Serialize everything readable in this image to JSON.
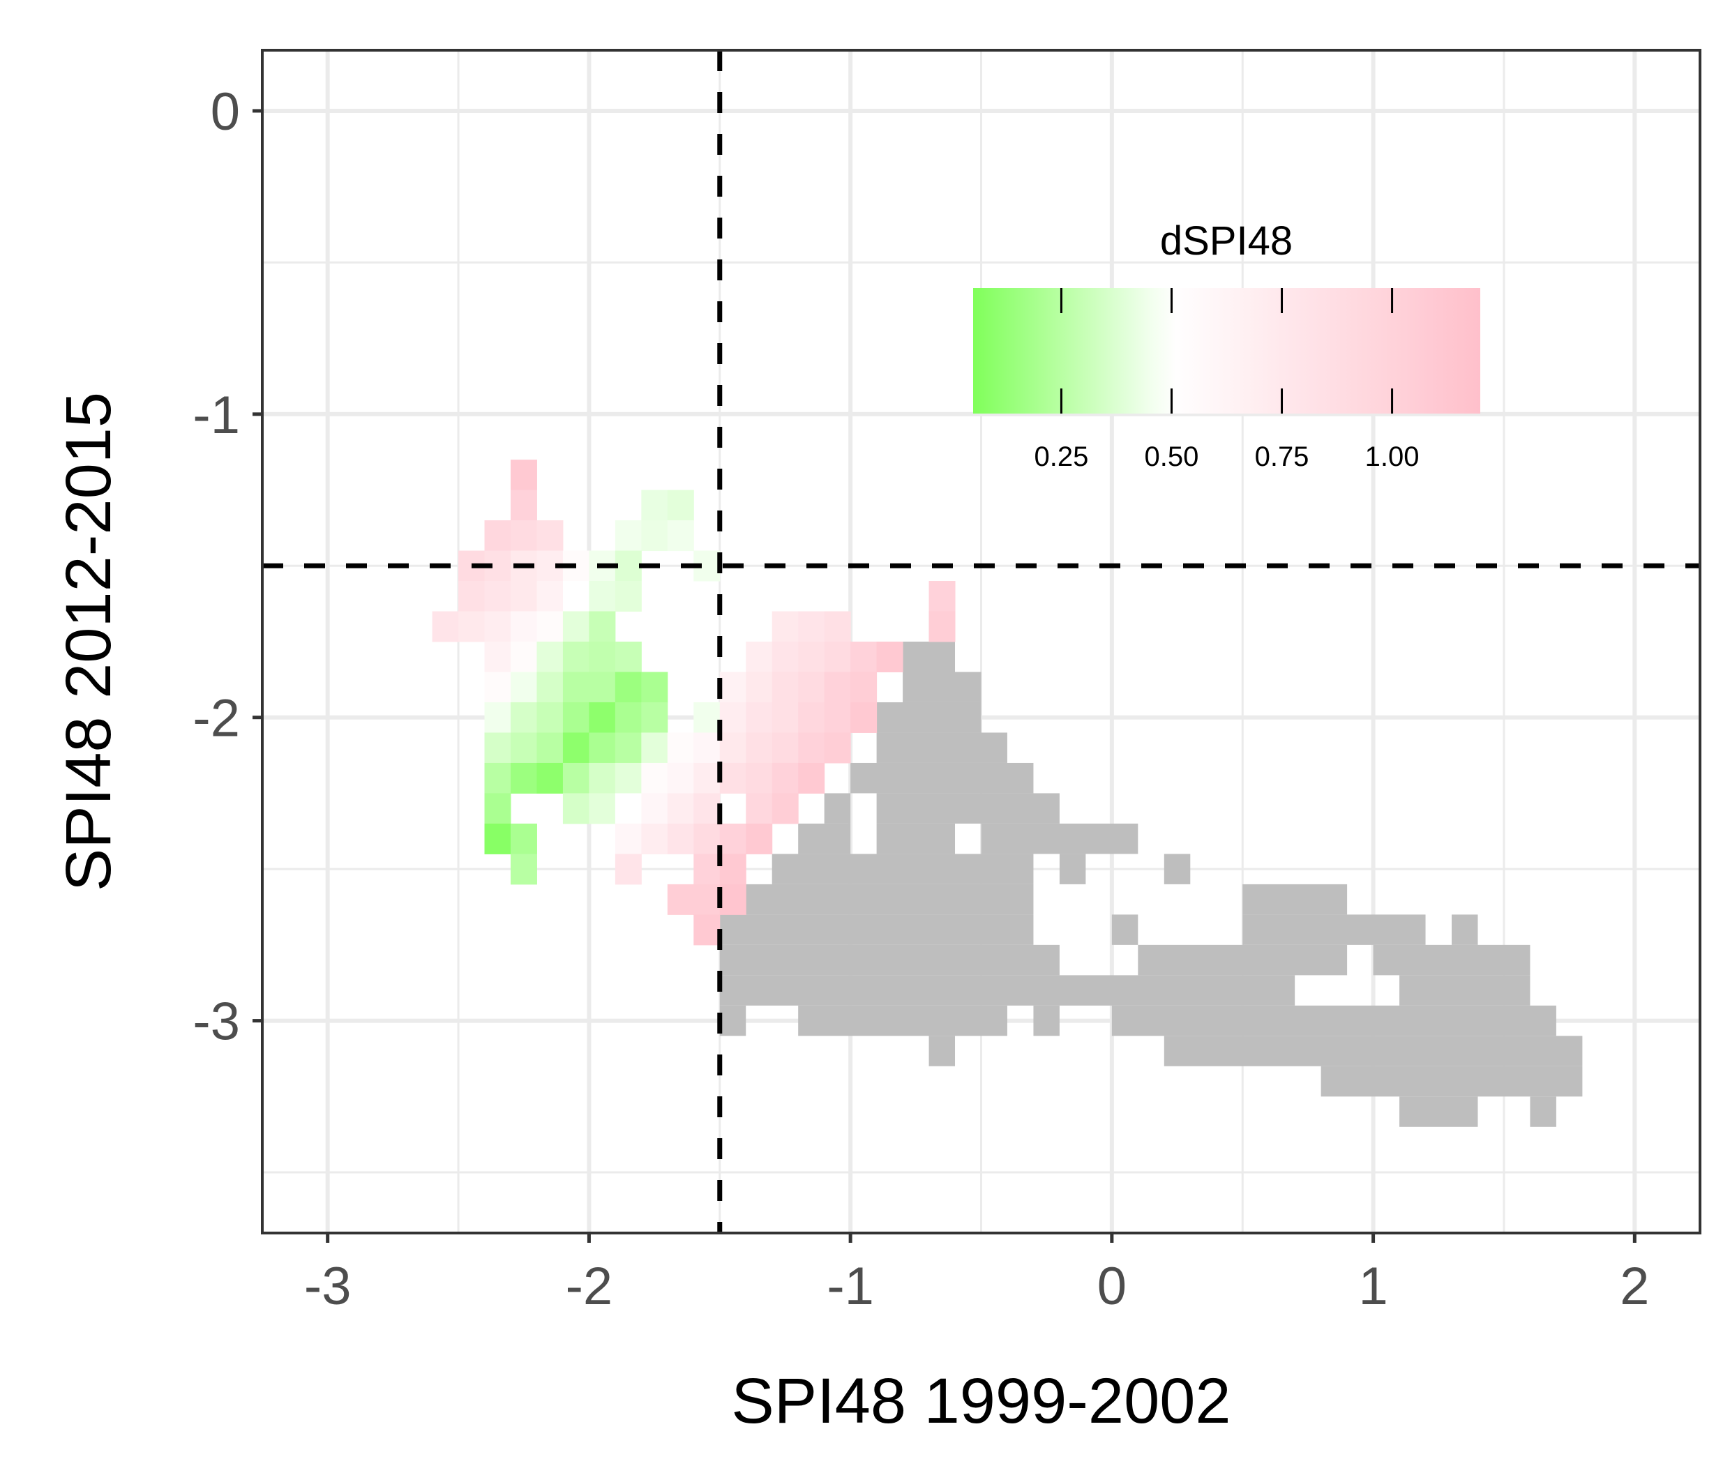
{
  "chart_data": {
    "type": "heatmap",
    "title": "",
    "xlabel": "SPI48 1999-2002",
    "ylabel": "SPI48 2012-2015",
    "xlim": [
      -3.25,
      2.25
    ],
    "ylim": [
      -3.7,
      0.2
    ],
    "x_ticks": [
      -3,
      -2,
      -1,
      0,
      1,
      2
    ],
    "y_ticks": [
      0,
      -1,
      -2,
      -3
    ],
    "x_tick_labels": [
      "-3",
      "-2",
      "-1",
      "0",
      "1",
      "2"
    ],
    "y_tick_labels": [
      "0",
      "-1",
      "-2",
      "-3"
    ],
    "grid": true,
    "reference_lines": {
      "x": -1.5,
      "y": -1.5,
      "style": "dashed"
    },
    "cell_size": 0.1,
    "na_color": "#bebebe",
    "legend": {
      "title": "dSPI48",
      "position": "top-right",
      "range": [
        0.05,
        1.2
      ],
      "ticks": [
        0.25,
        0.5,
        0.75,
        1.0
      ],
      "tick_labels": [
        "0.25",
        "0.50",
        "0.75",
        "1.00"
      ],
      "colors": {
        "low": "#80ff5a",
        "mid": "#ffffff",
        "high": "#ffc0cb"
      }
    },
    "rows": [
      {
        "y": -1.2,
        "cells": [
          [
            -2.25,
            1.1
          ]
        ]
      },
      {
        "y": -1.3,
        "cells": [
          [
            -2.25,
            1.0
          ],
          [
            -1.75,
            0.42
          ],
          [
            -1.65,
            0.4
          ]
        ]
      },
      {
        "y": -1.4,
        "cells": [
          [
            -2.35,
            0.95
          ],
          [
            -2.25,
            0.9
          ],
          [
            -2.15,
            0.85
          ],
          [
            -1.85,
            0.45
          ],
          [
            -1.75,
            0.43
          ],
          [
            -1.65,
            0.45
          ]
        ]
      },
      {
        "y": -1.5,
        "cells": [
          [
            -2.45,
            0.9
          ],
          [
            -2.35,
            0.85
          ],
          [
            -2.25,
            0.75
          ],
          [
            -2.15,
            0.7
          ],
          [
            -2.05,
            0.55
          ],
          [
            -1.95,
            0.45
          ],
          [
            -1.85,
            0.38
          ],
          [
            -1.55,
            0.45
          ]
        ]
      },
      {
        "y": -1.6,
        "cells": [
          [
            -2.45,
            0.85
          ],
          [
            -2.35,
            0.8
          ],
          [
            -2.25,
            0.75
          ],
          [
            -2.15,
            0.65
          ],
          [
            -2.05,
            0.5
          ],
          [
            -1.95,
            0.42
          ],
          [
            -1.85,
            0.4
          ],
          [
            -0.65,
            1.0
          ]
        ]
      },
      {
        "y": -1.7,
        "cells": [
          [
            -2.55,
            0.8
          ],
          [
            -2.45,
            0.75
          ],
          [
            -2.35,
            0.7
          ],
          [
            -2.25,
            0.6
          ],
          [
            -2.15,
            0.55
          ],
          [
            -2.05,
            0.4
          ],
          [
            -1.95,
            0.3
          ],
          [
            -1.25,
            0.75
          ],
          [
            -1.15,
            0.8
          ],
          [
            -1.05,
            0.85
          ],
          [
            -0.65,
            1.05
          ]
        ]
      },
      {
        "y": -1.8,
        "cells": [
          [
            -2.35,
            0.65
          ],
          [
            -2.25,
            0.55
          ],
          [
            -2.15,
            0.4
          ],
          [
            -2.05,
            0.3
          ],
          [
            -1.95,
            0.28
          ],
          [
            -1.85,
            0.3
          ],
          [
            -1.35,
            0.7
          ],
          [
            -1.25,
            0.8
          ],
          [
            -1.15,
            0.85
          ],
          [
            -1.05,
            0.9
          ],
          [
            -0.95,
            1.0
          ],
          [
            -0.85,
            1.1
          ]
        ]
      },
      {
        "y": -1.9,
        "cells": [
          [
            -2.35,
            0.55
          ],
          [
            -2.25,
            0.45
          ],
          [
            -2.15,
            0.35
          ],
          [
            -2.05,
            0.25
          ],
          [
            -1.95,
            0.25
          ],
          [
            -1.85,
            0.15
          ],
          [
            -1.75,
            0.2
          ],
          [
            -1.45,
            0.65
          ],
          [
            -1.35,
            0.75
          ],
          [
            -1.25,
            0.85
          ],
          [
            -1.15,
            0.9
          ],
          [
            -1.05,
            1.0
          ],
          [
            -0.95,
            1.05
          ]
        ]
      },
      {
        "y": -2.0,
        "cells": [
          [
            -2.35,
            0.45
          ],
          [
            -2.25,
            0.35
          ],
          [
            -2.15,
            0.3
          ],
          [
            -2.05,
            0.2
          ],
          [
            -1.95,
            0.1
          ],
          [
            -1.85,
            0.2
          ],
          [
            -1.75,
            0.25
          ],
          [
            -1.55,
            0.45
          ],
          [
            -1.45,
            0.7
          ],
          [
            -1.35,
            0.8
          ],
          [
            -1.25,
            0.85
          ],
          [
            -1.15,
            0.95
          ],
          [
            -1.05,
            1.0
          ],
          [
            -0.95,
            1.1
          ]
        ]
      },
      {
        "y": -2.1,
        "cells": [
          [
            -2.35,
            0.35
          ],
          [
            -2.25,
            0.3
          ],
          [
            -2.15,
            0.25
          ],
          [
            -2.05,
            0.1
          ],
          [
            -1.95,
            0.2
          ],
          [
            -1.85,
            0.25
          ],
          [
            -1.75,
            0.4
          ],
          [
            -1.65,
            0.55
          ],
          [
            -1.55,
            0.6
          ],
          [
            -1.45,
            0.75
          ],
          [
            -1.35,
            0.85
          ],
          [
            -1.25,
            0.9
          ],
          [
            -1.15,
            1.0
          ],
          [
            -1.05,
            1.05
          ]
        ]
      },
      {
        "y": -2.2,
        "cells": [
          [
            -2.35,
            0.25
          ],
          [
            -2.25,
            0.15
          ],
          [
            -2.15,
            0.1
          ],
          [
            -2.05,
            0.25
          ],
          [
            -1.95,
            0.35
          ],
          [
            -1.85,
            0.4
          ],
          [
            -1.75,
            0.55
          ],
          [
            -1.65,
            0.6
          ],
          [
            -1.55,
            0.7
          ],
          [
            -1.45,
            0.85
          ],
          [
            -1.35,
            0.9
          ],
          [
            -1.25,
            1.0
          ],
          [
            -1.15,
            1.1
          ]
        ]
      },
      {
        "y": -2.3,
        "cells": [
          [
            -2.35,
            0.2
          ],
          [
            -2.05,
            0.35
          ],
          [
            -1.95,
            0.4
          ],
          [
            -1.85,
            0.5
          ],
          [
            -1.75,
            0.6
          ],
          [
            -1.65,
            0.7
          ],
          [
            -1.55,
            0.8
          ],
          [
            -1.35,
            0.95
          ],
          [
            -1.25,
            1.05
          ]
        ]
      },
      {
        "y": -2.4,
        "cells": [
          [
            -2.35,
            0.08
          ],
          [
            -2.25,
            0.2
          ],
          [
            -1.85,
            0.6
          ],
          [
            -1.75,
            0.7
          ],
          [
            -1.65,
            0.8
          ],
          [
            -1.55,
            0.9
          ],
          [
            -1.45,
            1.0
          ],
          [
            -1.35,
            1.1
          ]
        ]
      },
      {
        "y": -2.5,
        "cells": [
          [
            -2.25,
            0.25
          ],
          [
            -1.85,
            0.8
          ],
          [
            -1.55,
            1.0
          ],
          [
            -1.45,
            1.1
          ]
        ]
      },
      {
        "y": -2.6,
        "cells": [
          [
            -1.65,
            1.05
          ],
          [
            -1.55,
            1.05
          ],
          [
            -1.45,
            1.15
          ]
        ]
      },
      {
        "y": -2.7,
        "cells": [
          [
            -1.55,
            1.1
          ]
        ]
      }
    ]
  },
  "na_region_rows": [
    {
      "y": -1.7,
      "spans": [
        [
          -0.7,
          -0.6
        ]
      ]
    },
    {
      "y": -1.8,
      "spans": [
        [
          -0.8,
          -0.6
        ]
      ]
    },
    {
      "y": -1.9,
      "spans": [
        [
          -0.8,
          -0.5
        ]
      ]
    },
    {
      "y": -2.0,
      "spans": [
        [
          -0.9,
          -0.5
        ]
      ]
    },
    {
      "y": -2.1,
      "spans": [
        [
          -0.9,
          -0.4
        ]
      ]
    },
    {
      "y": -2.2,
      "spans": [
        [
          -1.0,
          -0.3
        ]
      ]
    },
    {
      "y": -2.3,
      "spans": [
        [
          -1.1,
          -1.0
        ],
        [
          -0.9,
          -0.2
        ]
      ]
    },
    {
      "y": -2.4,
      "spans": [
        [
          -1.2,
          -1.0
        ],
        [
          -0.9,
          -0.6
        ],
        [
          -0.5,
          0.1
        ]
      ]
    },
    {
      "y": -2.5,
      "spans": [
        [
          -1.3,
          -0.3
        ],
        [
          -0.2,
          -0.1
        ],
        [
          0.2,
          0.3
        ]
      ]
    },
    {
      "y": -2.6,
      "spans": [
        [
          -1.4,
          -0.3
        ],
        [
          0.5,
          0.9
        ]
      ]
    },
    {
      "y": -2.7,
      "spans": [
        [
          -1.5,
          -0.3
        ],
        [
          0.0,
          0.1
        ],
        [
          0.5,
          1.2
        ],
        [
          1.3,
          1.4
        ]
      ]
    },
    {
      "y": -2.8,
      "spans": [
        [
          -1.5,
          -0.2
        ],
        [
          0.1,
          0.9
        ],
        [
          1.0,
          1.6
        ]
      ]
    },
    {
      "y": -2.9,
      "spans": [
        [
          -1.5,
          0.7
        ],
        [
          1.1,
          1.6
        ]
      ]
    },
    {
      "y": -3.0,
      "spans": [
        [
          -1.5,
          -1.4
        ],
        [
          -1.2,
          -0.4
        ],
        [
          -0.3,
          -0.2
        ],
        [
          0.0,
          1.7
        ]
      ]
    },
    {
      "y": -3.1,
      "spans": [
        [
          -0.7,
          -0.6
        ],
        [
          0.2,
          1.8
        ]
      ]
    },
    {
      "y": -3.2,
      "spans": [
        [
          0.8,
          1.8
        ]
      ]
    },
    {
      "y": -3.3,
      "spans": [
        [
          1.1,
          1.4
        ],
        [
          1.6,
          1.7
        ]
      ]
    }
  ]
}
